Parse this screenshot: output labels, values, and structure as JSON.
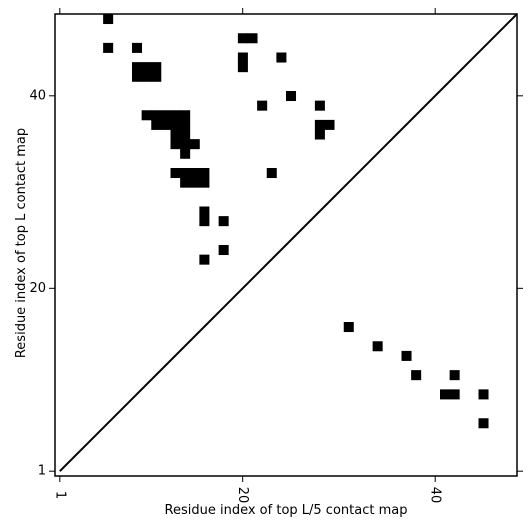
{
  "chart_data": {
    "type": "heatmap",
    "title": "",
    "xlabel": "Residue index of top L/5 contact map",
    "ylabel": "Residue index of top L contact map",
    "xlim": [
      0.5,
      48.5
    ],
    "ylim": [
      0.5,
      48.5
    ],
    "x_ticks": [
      {
        "value": 1,
        "label": "1"
      },
      {
        "value": 20,
        "label": "20"
      },
      {
        "value": 40,
        "label": "40"
      }
    ],
    "y_ticks": [
      {
        "value": 1,
        "label": "1"
      },
      {
        "value": 20,
        "label": "20"
      },
      {
        "value": 40,
        "label": "40"
      }
    ],
    "diagonal": true,
    "cell_color": "#000000",
    "upper_triangle_cells": [
      [
        6,
        48
      ],
      [
        6,
        45
      ],
      [
        9,
        45
      ],
      [
        20,
        46
      ],
      [
        21,
        46
      ],
      [
        9,
        43
      ],
      [
        10,
        43
      ],
      [
        11,
        43
      ],
      [
        9,
        42
      ],
      [
        10,
        42
      ],
      [
        11,
        42
      ],
      [
        20,
        43
      ],
      [
        20,
        44
      ],
      [
        24,
        44
      ],
      [
        25,
        40
      ],
      [
        22,
        39
      ],
      [
        28,
        39
      ],
      [
        10,
        38
      ],
      [
        11,
        38
      ],
      [
        12,
        38
      ],
      [
        13,
        38
      ],
      [
        14,
        38
      ],
      [
        11,
        37
      ],
      [
        12,
        37
      ],
      [
        13,
        37
      ],
      [
        14,
        37
      ],
      [
        13,
        36
      ],
      [
        14,
        36
      ],
      [
        13,
        35
      ],
      [
        14,
        35
      ],
      [
        15,
        35
      ],
      [
        14,
        34
      ],
      [
        28,
        37
      ],
      [
        29,
        37
      ],
      [
        28,
        36
      ],
      [
        13,
        32
      ],
      [
        14,
        32
      ],
      [
        15,
        32
      ],
      [
        16,
        32
      ],
      [
        23,
        32
      ],
      [
        14,
        31
      ],
      [
        15,
        31
      ],
      [
        16,
        31
      ],
      [
        16,
        28
      ],
      [
        16,
        27
      ],
      [
        18,
        27
      ],
      [
        18,
        24
      ],
      [
        16,
        23
      ]
    ],
    "lower_triangle_cells": [
      [
        31,
        16
      ],
      [
        34,
        14
      ],
      [
        37,
        13
      ],
      [
        38,
        11
      ],
      [
        42,
        11
      ],
      [
        41,
        9
      ],
      [
        42,
        9
      ],
      [
        45,
        9
      ],
      [
        45,
        6
      ]
    ]
  }
}
